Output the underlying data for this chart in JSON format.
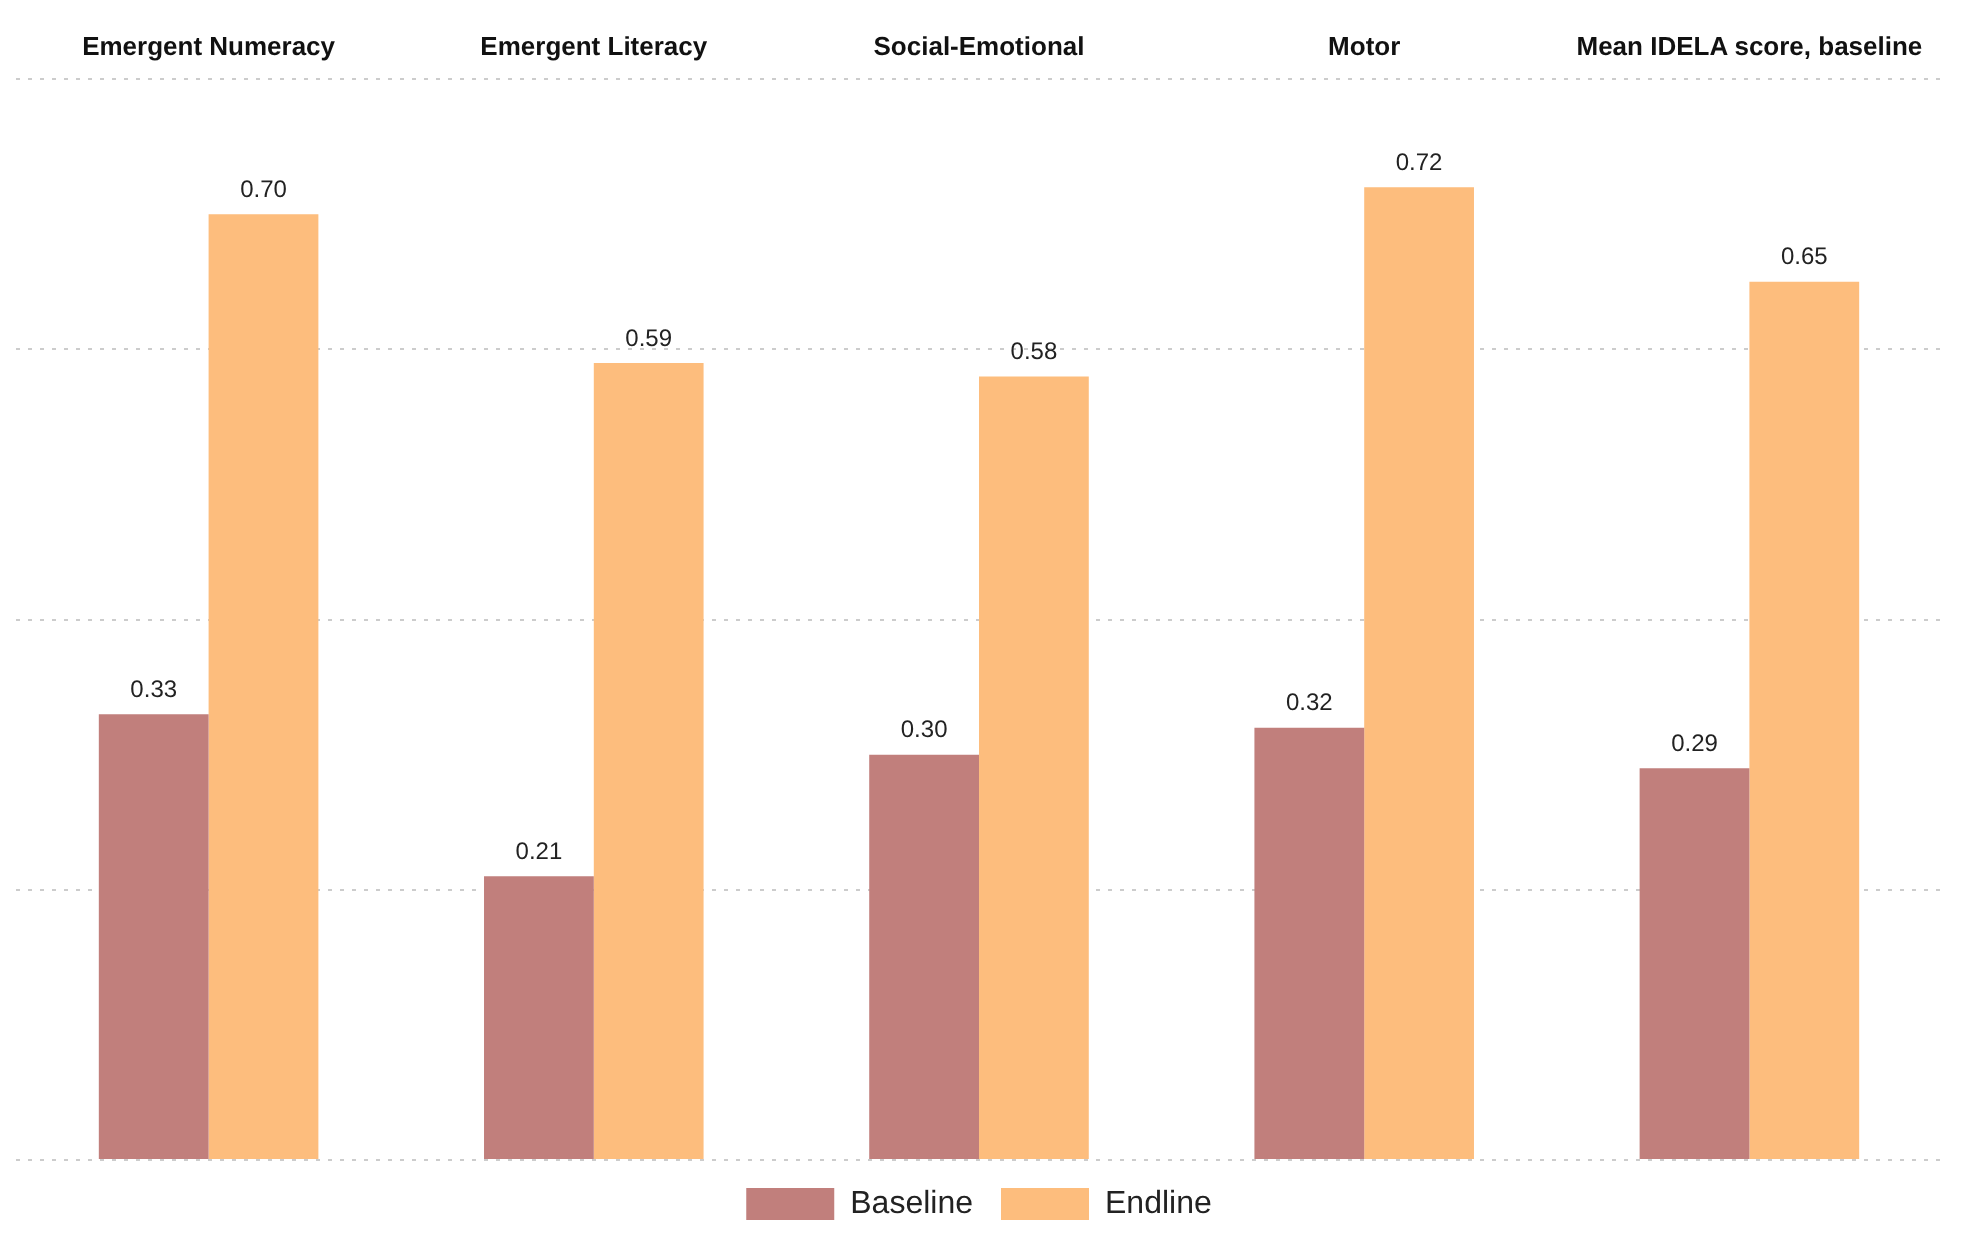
{
  "chart_data": {
    "type": "bar",
    "categories": [
      "Emergent Numeracy",
      "Emergent Literacy",
      "Social-Emotional",
      "Motor",
      "Mean IDELA score, baseline"
    ],
    "series": [
      {
        "name": "Baseline",
        "color": "#c17f7c",
        "values": [
          0.33,
          0.21,
          0.3,
          0.32,
          0.29
        ],
        "value_labels": [
          "0.33",
          "0.21",
          "0.30",
          "0.32",
          "0.29"
        ]
      },
      {
        "name": "Endline",
        "color": "#fdbd7d",
        "values": [
          0.7,
          0.59,
          0.58,
          0.72,
          0.65
        ],
        "value_labels": [
          "0.70",
          "0.59",
          "0.58",
          "0.72",
          "0.65"
        ]
      }
    ],
    "ylim": [
      0,
      0.8
    ],
    "yticks": [
      {
        "value": 0,
        "label": null
      },
      {
        "value": 0.2,
        "label": null
      },
      {
        "value": 0.4,
        "label": null
      },
      {
        "value": 0.6,
        "label": null
      },
      {
        "value": 0.8,
        "label": null
      }
    ],
    "tick_labels": "x",
    "grid": "y",
    "legend": "bottom"
  }
}
